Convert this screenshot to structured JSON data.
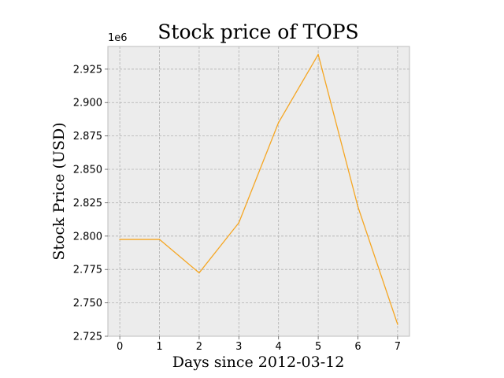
{
  "chart_data": {
    "type": "line",
    "title": "Stock price of TOPS",
    "xlabel": "Days since 2012-03-12",
    "ylabel": "Stock Price (USD)",
    "y_offset_label": "1e6",
    "x": [
      0,
      1,
      2,
      3,
      4,
      5,
      6,
      7
    ],
    "series": [
      {
        "values": [
          2797500,
          2797500,
          2772500,
          2810000,
          2885000,
          2936000,
          2822000,
          2734000
        ],
        "color": "#f5a623"
      }
    ],
    "xlim": [
      -0.3,
      7.3
    ],
    "ylim": [
      2725000,
      2942000
    ],
    "x_ticks": [
      0,
      1,
      2,
      3,
      4,
      5,
      6,
      7
    ],
    "x_tick_labels": [
      "0",
      "1",
      "2",
      "3",
      "4",
      "5",
      "6",
      "7"
    ],
    "y_ticks": [
      2725000,
      2750000,
      2775000,
      2800000,
      2825000,
      2850000,
      2875000,
      2900000,
      2925000
    ],
    "y_tick_labels": [
      "2.725",
      "2.750",
      "2.775",
      "2.800",
      "2.825",
      "2.850",
      "2.875",
      "2.900",
      "2.925"
    ],
    "grid": true,
    "background_color": "#ececec",
    "frame_color": "#bdbdbd"
  }
}
